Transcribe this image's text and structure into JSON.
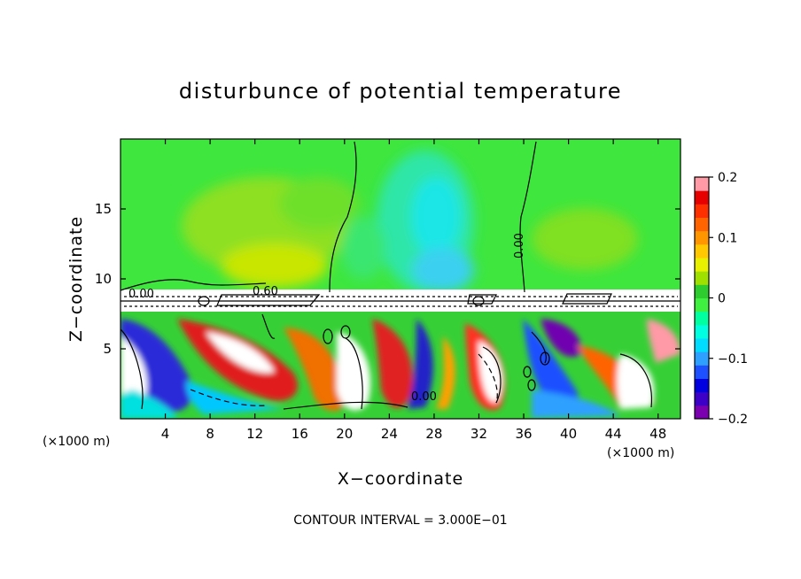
{
  "chart_data": {
    "type": "heatmap",
    "title": "disturbunce of potential temperature",
    "xlabel": "X−coordinate",
    "ylabel": "Z−coordinate",
    "x_unit": "(×1000 m)",
    "y_unit": "(×1000 m)",
    "xlim": [
      0,
      50
    ],
    "ylim": [
      0,
      20
    ],
    "x_ticks": [
      4,
      8,
      12,
      16,
      20,
      24,
      28,
      32,
      36,
      40,
      44,
      48
    ],
    "y_ticks": [
      5,
      10,
      15
    ],
    "grid": false,
    "contour_interval": "CONTOUR INTERVAL = 3.000E−01",
    "contour_labels": [
      "0.00",
      "0.60",
      "0.00",
      "0.00"
    ],
    "colorbar": {
      "ticks": [
        "0.2",
        "0.1",
        "0",
        "−0.1",
        "−0.2"
      ],
      "range": [
        -0.2,
        0.2
      ],
      "colors": [
        "#7a00b0",
        "#3c00c8",
        "#0000e0",
        "#1e50ff",
        "#2ea0ff",
        "#00dcff",
        "#00ffe0",
        "#00ffa0",
        "#40f040",
        "#2ecc2e",
        "#a0e000",
        "#e8f000",
        "#ffc800",
        "#ff9600",
        "#ff6400",
        "#ff3000",
        "#e60000",
        "#ff9aa6"
      ]
    }
  }
}
